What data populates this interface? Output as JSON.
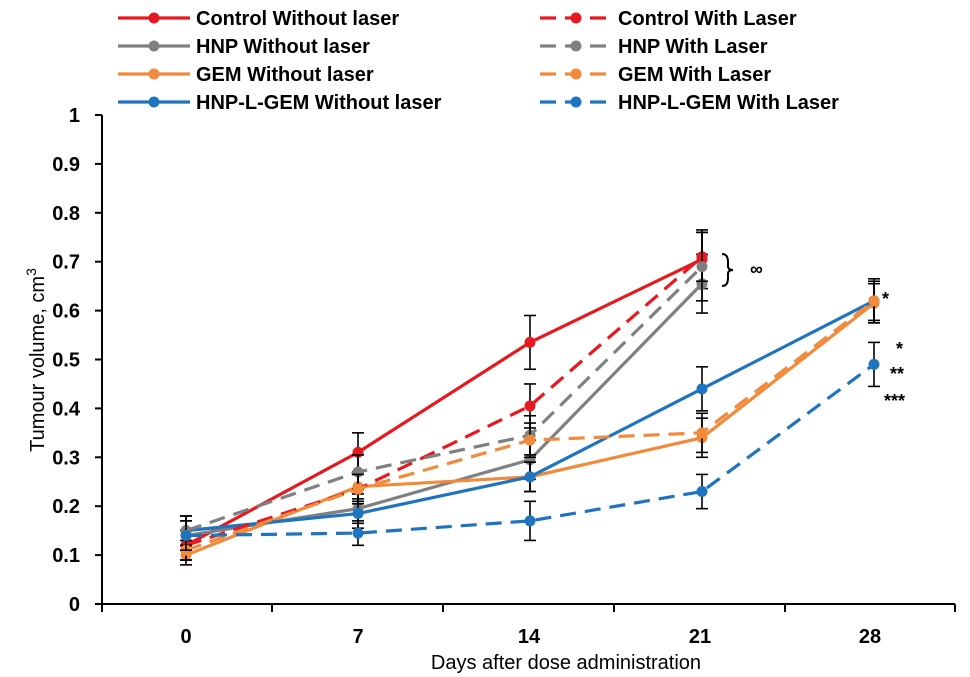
{
  "chart_data": {
    "type": "line",
    "xlabel": "Days after dose administration",
    "ylabel_main": "Tumour volume, cm",
    "ylabel_sup": "3",
    "ylim": [
      0,
      1
    ],
    "yticks": [
      0,
      0.1,
      0.2,
      0.3,
      0.4,
      0.5,
      0.6,
      0.7,
      0.8,
      0.9,
      1
    ],
    "ytick_labels": [
      "0",
      "0.1",
      "0.2",
      "0.3",
      "0.4",
      "0.5",
      "0.6",
      "0.7",
      "0.8",
      "0.9",
      "1"
    ],
    "categories": [
      "0",
      "7",
      "14",
      "21",
      "28"
    ],
    "legend_position": "top",
    "grid": false,
    "series": [
      {
        "name": "Control  Without laser",
        "color": "#e8191e",
        "dashed": false,
        "x": [
          0,
          7,
          14,
          21
        ],
        "values": [
          0.12,
          0.31,
          0.535,
          0.705
        ],
        "errors": [
          0.03,
          0.04,
          0.055,
          0.06
        ]
      },
      {
        "name": "HNP Without laser",
        "color": "#808080",
        "dashed": false,
        "x": [
          0,
          7,
          14,
          21
        ],
        "values": [
          0.14,
          0.195,
          0.295,
          0.655
        ],
        "errors": [
          0.03,
          0.03,
          0.04,
          0.06
        ]
      },
      {
        "name": "GEM Without laser",
        "color": "#f28a3b",
        "dashed": false,
        "x": [
          0,
          7,
          14,
          21,
          28
        ],
        "values": [
          0.1,
          0.24,
          0.26,
          0.34,
          0.615
        ],
        "errors": [
          0.02,
          0.03,
          0.03,
          0.04,
          0.04
        ]
      },
      {
        "name": "HNP-L-GEM Without laser",
        "color": "#1f74bf",
        "dashed": false,
        "x": [
          0,
          7,
          14,
          21,
          28
        ],
        "values": [
          0.15,
          0.185,
          0.26,
          0.44,
          0.62
        ],
        "errors": [
          0.03,
          0.03,
          0.03,
          0.045,
          0.045
        ]
      },
      {
        "name": "Control  With Laser",
        "color": "#e8191e",
        "dashed": true,
        "x": [
          0,
          7,
          14,
          21
        ],
        "values": [
          0.12,
          0.235,
          0.405,
          0.71
        ],
        "errors": [
          0.03,
          0.03,
          0.045,
          0.05
        ]
      },
      {
        "name": "HNP With Laser",
        "color": "#808080",
        "dashed": true,
        "x": [
          0,
          7,
          14,
          21
        ],
        "values": [
          0.15,
          0.27,
          0.345,
          0.69
        ],
        "errors": [
          0.03,
          0.035,
          0.04,
          0.07
        ]
      },
      {
        "name": "GEM With Laser",
        "color": "#f28a3b",
        "dashed": true,
        "x": [
          0,
          7,
          14,
          21,
          28
        ],
        "values": [
          0.11,
          0.235,
          0.335,
          0.35,
          0.62
        ],
        "errors": [
          0.02,
          0.03,
          0.035,
          0.04,
          0.04
        ]
      },
      {
        "name": "HNP-L-GEM With Laser",
        "color": "#1f74bf",
        "dashed": true,
        "x": [
          0,
          7,
          14,
          21,
          28
        ],
        "values": [
          0.14,
          0.145,
          0.17,
          0.23,
          0.49
        ],
        "errors": [
          0.03,
          0.025,
          0.04,
          0.035,
          0.045
        ]
      }
    ],
    "annotations": {
      "bracket_symbol": "∞",
      "star_1": "*",
      "star_2": "*",
      "star_3": "**",
      "star_4": "***"
    }
  }
}
